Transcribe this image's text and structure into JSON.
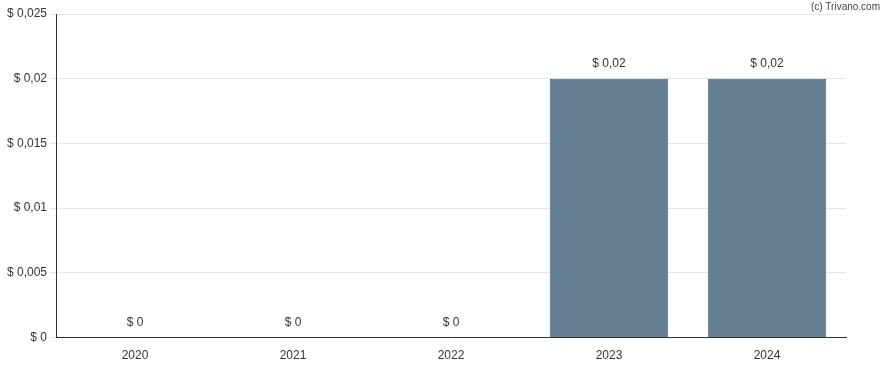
{
  "chart_data": {
    "type": "bar",
    "annotation": "(c) Trivano.com",
    "categories": [
      "2020",
      "2021",
      "2022",
      "2023",
      "2024"
    ],
    "values": [
      0,
      0,
      0,
      0.02,
      0.02
    ],
    "value_labels": [
      "$ 0",
      "$ 0",
      "$ 0",
      "$ 0,02",
      "$ 0,02"
    ],
    "data_labels": true,
    "color": "#647f91",
    "ylim": [
      0,
      0.025
    ],
    "yticks": [
      {
        "value": 0,
        "label": "$ 0"
      },
      {
        "value": 0.005,
        "label": "$ 0,005"
      },
      {
        "value": 0.01,
        "label": "$ 0,01"
      },
      {
        "value": 0.015,
        "label": "$ 0,015"
      },
      {
        "value": 0.02,
        "label": "$ 0,02"
      },
      {
        "value": 0.025,
        "label": "$ 0,025"
      }
    ],
    "grid": true
  }
}
